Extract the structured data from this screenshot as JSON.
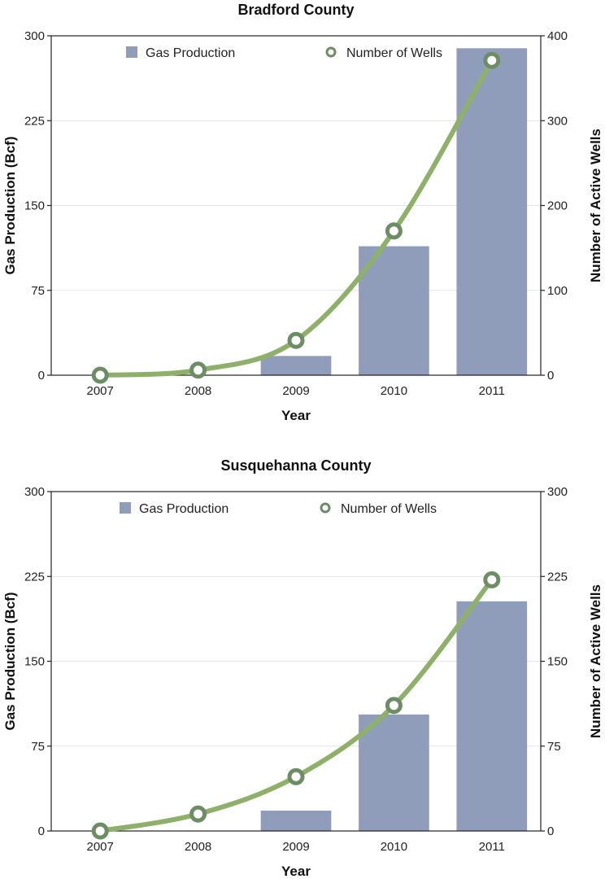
{
  "chart_data": [
    {
      "type": "bar",
      "title": "Bradford County",
      "xlabel": "Year",
      "ylabel": "Gas Production (Bcf)",
      "y2label": "Number of Active Wells",
      "categories": [
        "2007",
        "2008",
        "2009",
        "2010",
        "2011"
      ],
      "ylim": [
        0,
        300
      ],
      "yticks": [
        "0",
        "75",
        "150",
        "225",
        "300"
      ],
      "y2lim": [
        0,
        400
      ],
      "y2ticks": [
        "0",
        "100",
        "200",
        "300",
        "400"
      ],
      "grid": true,
      "legend_position": "top",
      "series": [
        {
          "name": "Gas Production",
          "type": "bar",
          "axis": "left",
          "color": "#8f9dba",
          "values": [
            0,
            0,
            17,
            114,
            289
          ]
        },
        {
          "name": "Number of Wells",
          "type": "line",
          "axis": "right",
          "color": "#8fb06a",
          "marker_color": "#6e8c65",
          "values": [
            0,
            6,
            41,
            170,
            371
          ]
        }
      ]
    },
    {
      "type": "bar",
      "title": "Susquehanna County",
      "xlabel": "Year",
      "ylabel": "Gas Production (Bcf)",
      "y2label": "Number of Active Wells",
      "categories": [
        "2007",
        "2008",
        "2009",
        "2010",
        "2011"
      ],
      "ylim": [
        0,
        300
      ],
      "yticks": [
        "0",
        "75",
        "150",
        "225",
        "300"
      ],
      "y2lim": [
        0,
        300
      ],
      "y2ticks": [
        "0",
        "75",
        "150",
        "225",
        "300"
      ],
      "grid": true,
      "legend_position": "top",
      "series": [
        {
          "name": "Gas Production",
          "type": "bar",
          "axis": "left",
          "color": "#8f9dba",
          "values": [
            0,
            0,
            18,
            103,
            203
          ]
        },
        {
          "name": "Number of Wells",
          "type": "line",
          "axis": "right",
          "color": "#8fb06a",
          "marker_color": "#6e8c65",
          "values": [
            0,
            15,
            48,
            111,
            222
          ]
        }
      ]
    }
  ]
}
